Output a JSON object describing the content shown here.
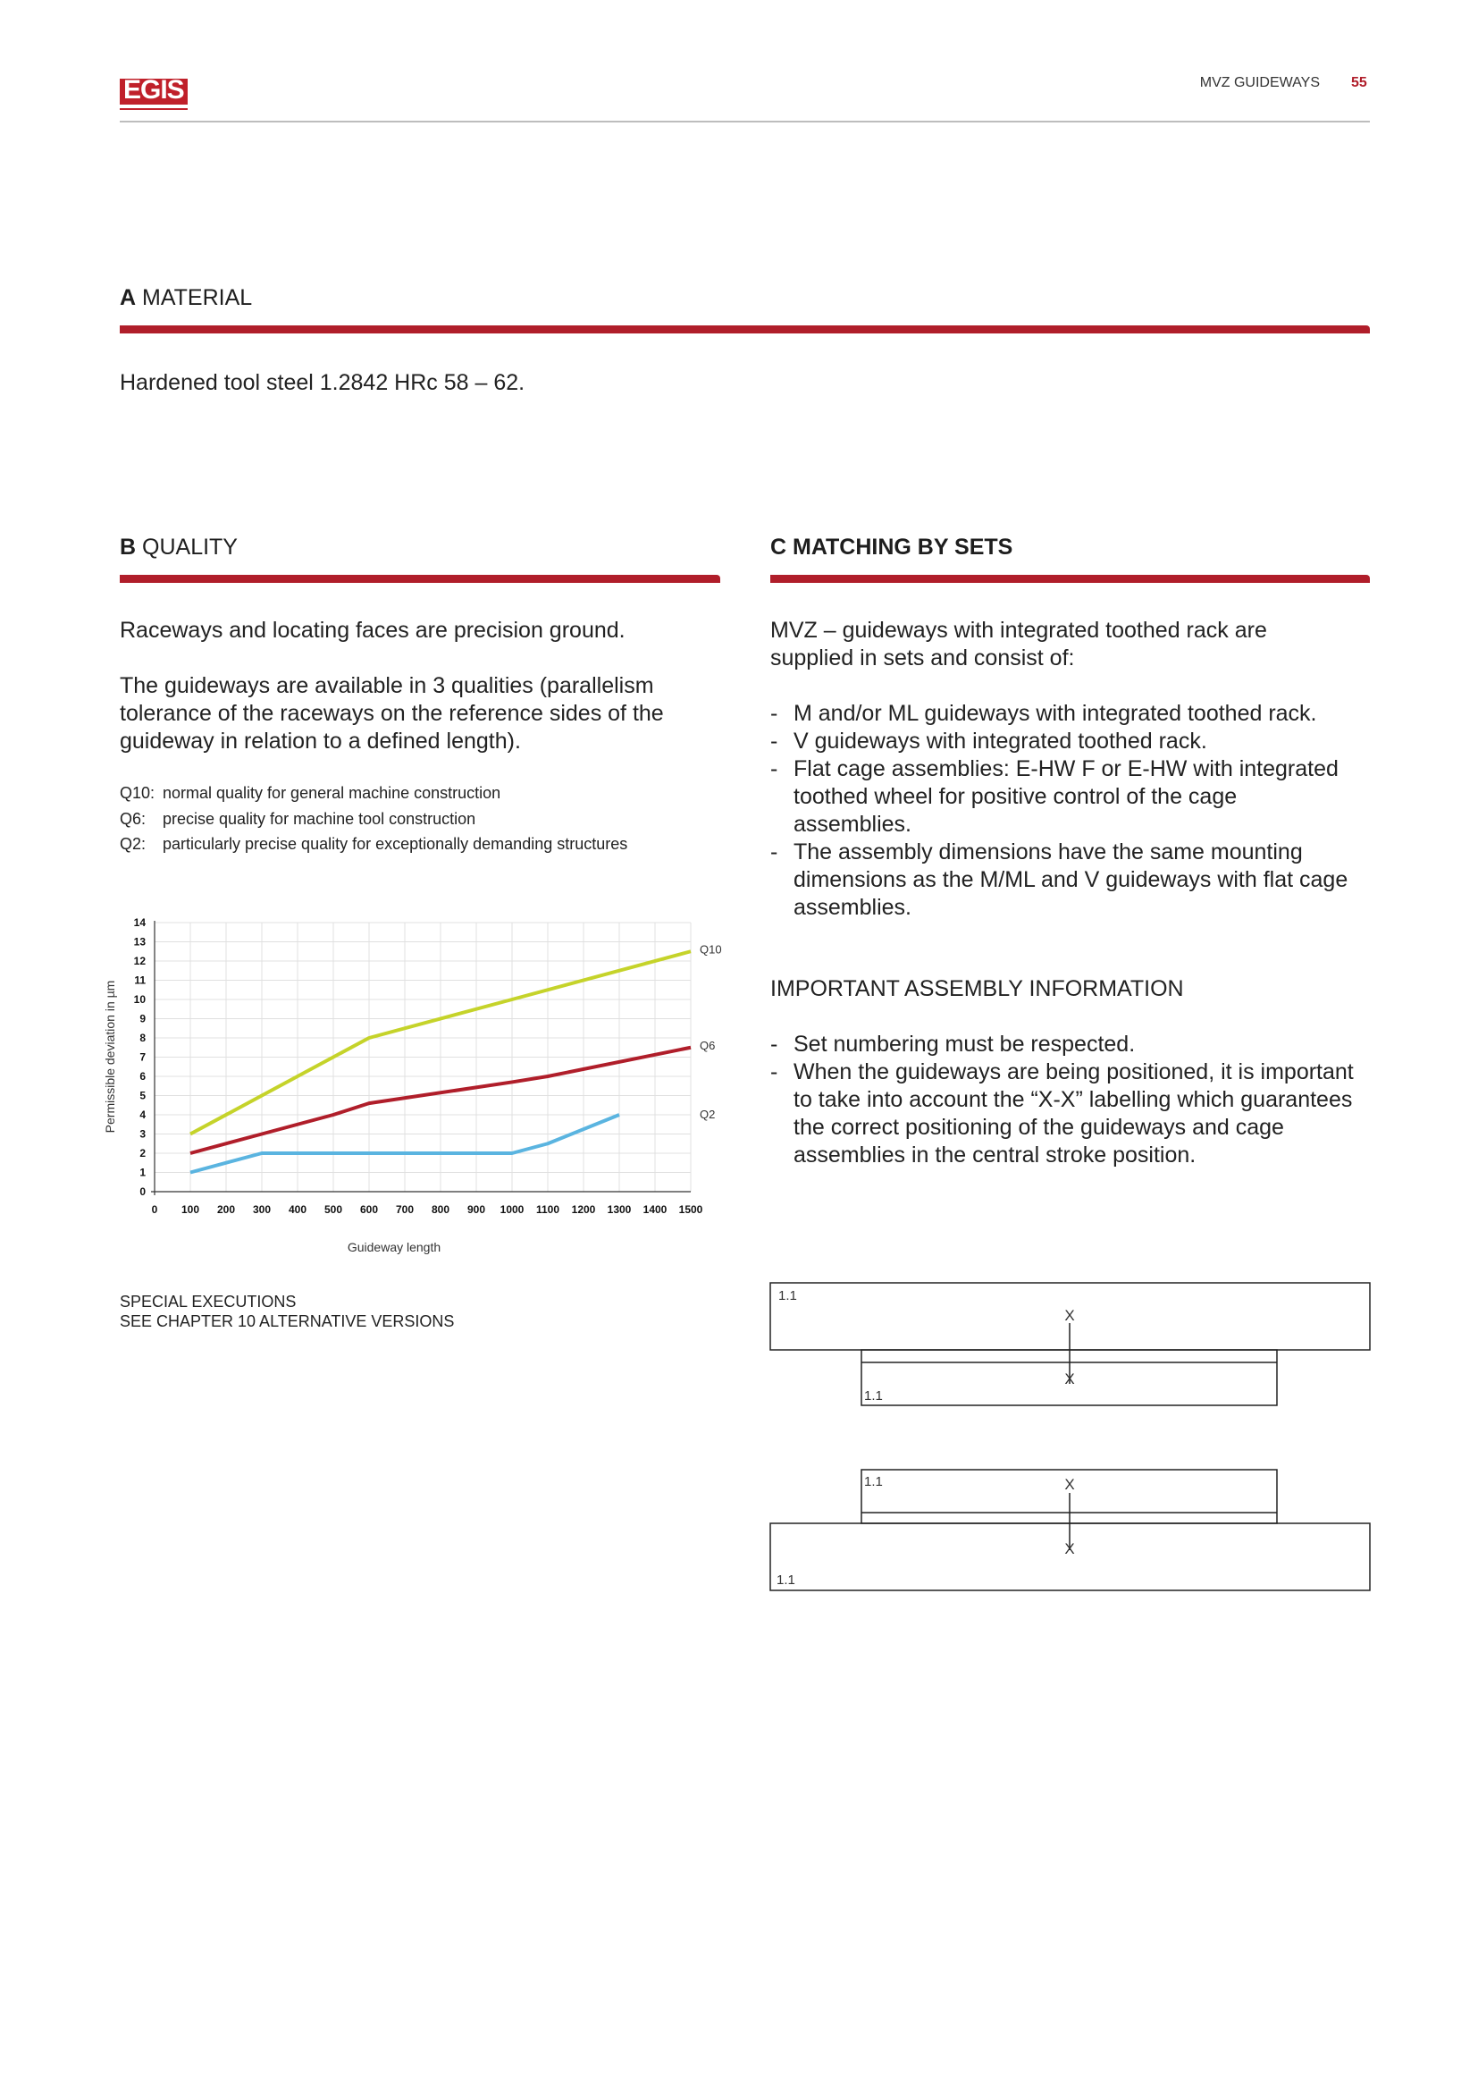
{
  "header": {
    "logo": "EGIS",
    "title": "MVZ GUIDEWAYS",
    "page_number": "55",
    "accent_color": "#b01e2a"
  },
  "section_a": {
    "letter": "A",
    "title": "MATERIAL",
    "text": "Hardened tool steel 1.2842 HRc 58 – 62."
  },
  "section_b": {
    "letter": "B",
    "title": "QUALITY",
    "para1": "Raceways and locating faces are precision ground.",
    "para2": "The guideways are available in 3 qualities (parallelism tolerance of the raceways on the reference sides of the guideway in relation to a defined length).",
    "qualities": [
      {
        "code": "Q10:",
        "desc": "normal quality for general machine construction"
      },
      {
        "code": "Q6:",
        "desc": "precise quality for machine tool construction"
      },
      {
        "code": "Q2:",
        "desc": "particularly precise quality for exceptionally demanding structures"
      }
    ],
    "special_line1": "SPECIAL EXECUTIONS",
    "special_line2": "SEE CHAPTER 10 ALTERNATIVE VERSIONS"
  },
  "section_c": {
    "letter": "C",
    "title": "MATCHING BY SETS",
    "intro": "MVZ – guideways with integrated toothed rack are supplied in sets and consist of:",
    "items": [
      "M and/or ML guideways with integrated toothed rack.",
      "V guideways with integrated toothed rack.",
      "Flat cage assemblies: E-HW F or E-HW with integrated toothed wheel for positive control of the cage assemblies.",
      "The assembly dimensions have the same mounting dimensions as the M/ML and V guideways with flat cage assemblies."
    ],
    "important_title": "IMPORTANT ASSEMBLY INFORMATION",
    "important_items": [
      "Set numbering must be respected.",
      "When the guideways are being positioned, it is important to take into account the “X-X” labelling which guarantees the correct positioning of the guideways and cage assemblies in the central stroke position."
    ]
  },
  "diagram": {
    "set_label": "1.1",
    "axis_label": "X"
  },
  "chart_data": {
    "type": "line",
    "xlabel": "Guideway length",
    "ylabel": "Permissible deviation in µm",
    "xlim": [
      0,
      1500
    ],
    "ylim": [
      0,
      14
    ],
    "xticks": [
      0,
      100,
      200,
      300,
      400,
      500,
      600,
      700,
      800,
      900,
      1000,
      1100,
      1200,
      1300,
      1400,
      1500
    ],
    "yticks": [
      0,
      1,
      2,
      3,
      4,
      5,
      6,
      7,
      8,
      9,
      10,
      11,
      12,
      13,
      14
    ],
    "grid": true,
    "series": [
      {
        "name": "Q10",
        "color": "#c5d32a",
        "x": [
          100,
          300,
          600,
          1000,
          1500
        ],
        "y": [
          3,
          5,
          8,
          10,
          12.5
        ]
      },
      {
        "name": "Q6",
        "color": "#b01e2a",
        "x": [
          100,
          300,
          500,
          600,
          1000,
          1100,
          1500
        ],
        "y": [
          2,
          3,
          4,
          4.6,
          5.7,
          6,
          7.5
        ]
      },
      {
        "name": "Q2",
        "color": "#5ab4e0",
        "x": [
          100,
          300,
          1000,
          1100,
          1300
        ],
        "y": [
          1,
          2,
          2,
          2.5,
          4
        ]
      }
    ]
  }
}
